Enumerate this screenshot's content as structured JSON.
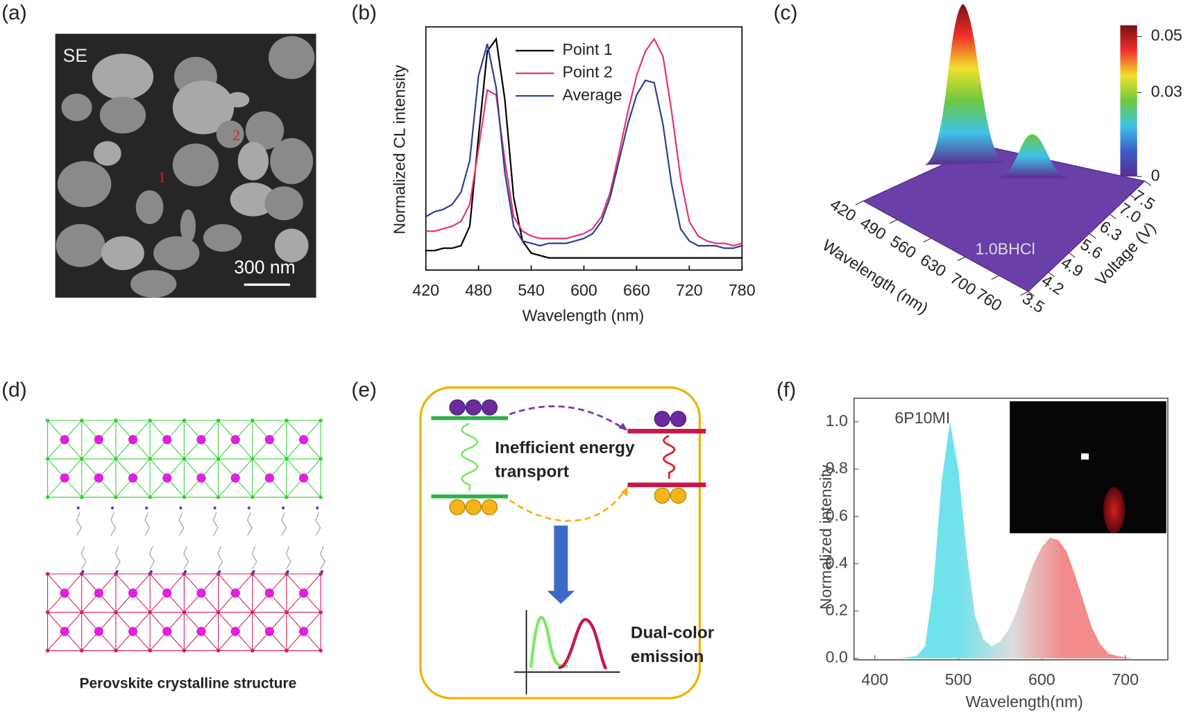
{
  "panel_labels": [
    "(a)",
    "(b)",
    "(c)",
    "(d)",
    "(e)",
    "(f)"
  ],
  "sem_image": {
    "label": "SE",
    "points": [
      "1",
      "2"
    ],
    "scale_bar": "300 nm"
  },
  "chart_data": [
    {
      "type": "line",
      "xlabel": "Wavelength (nm)",
      "ylabel": "Normalized CL intensity",
      "x": [
        420,
        430,
        440,
        450,
        460,
        470,
        480,
        490,
        500,
        510,
        520,
        530,
        540,
        550,
        560,
        570,
        580,
        590,
        600,
        610,
        620,
        630,
        640,
        650,
        660,
        670,
        680,
        690,
        700,
        710,
        720,
        730,
        740,
        750,
        760,
        770,
        780
      ],
      "xlim": [
        420,
        780
      ],
      "xticks": [
        420,
        480,
        540,
        600,
        660,
        720,
        780
      ],
      "ylim": [
        0,
        1
      ],
      "legend": "upper center",
      "series": [
        {
          "name": "Point 1",
          "color": "#000000",
          "values": [
            0.08,
            0.08,
            0.09,
            0.09,
            0.1,
            0.18,
            0.55,
            0.9,
            0.95,
            0.7,
            0.3,
            0.12,
            0.07,
            0.06,
            0.05,
            0.05,
            0.05,
            0.05,
            0.05,
            0.05,
            0.05,
            0.05,
            0.05,
            0.05,
            0.05,
            0.05,
            0.05,
            0.05,
            0.05,
            0.05,
            0.05,
            0.05,
            0.05,
            0.05,
            0.05,
            0.05,
            0.05
          ]
        },
        {
          "name": "Point 2",
          "color": "#e8317a",
          "values": [
            0.16,
            0.16,
            0.17,
            0.18,
            0.2,
            0.27,
            0.5,
            0.74,
            0.72,
            0.45,
            0.22,
            0.16,
            0.14,
            0.13,
            0.13,
            0.13,
            0.13,
            0.14,
            0.15,
            0.17,
            0.22,
            0.32,
            0.48,
            0.65,
            0.8,
            0.9,
            0.95,
            0.88,
            0.65,
            0.38,
            0.2,
            0.14,
            0.12,
            0.11,
            0.11,
            0.1,
            0.11
          ]
        },
        {
          "name": "Average",
          "color": "#2b3f8f",
          "values": [
            0.22,
            0.24,
            0.25,
            0.27,
            0.32,
            0.45,
            0.8,
            0.93,
            0.75,
            0.4,
            0.18,
            0.12,
            0.11,
            0.1,
            0.11,
            0.11,
            0.11,
            0.12,
            0.13,
            0.15,
            0.2,
            0.3,
            0.45,
            0.6,
            0.72,
            0.78,
            0.77,
            0.6,
            0.35,
            0.17,
            0.12,
            0.1,
            0.1,
            0.1,
            0.09,
            0.09,
            0.1
          ]
        }
      ]
    },
    {
      "type": "surface",
      "xlabel": "Wavelength (nm)",
      "ylabel": "Voltage (V)",
      "annotation": "1.0BHCl",
      "xlim": [
        420,
        760
      ],
      "xticks": [
        420,
        490,
        560,
        630,
        700,
        760
      ],
      "ylim": [
        3.5,
        7.5
      ],
      "yticks": [
        3.5,
        4.2,
        4.9,
        5.6,
        6.3,
        {
          "value": 7,
          "label": "7.0"
        },
        7.5
      ],
      "clim": [
        0,
        0.054
      ],
      "cticks": [
        0.05,
        0.03,
        0
      ],
      "colormap": [
        "#5b2c8f",
        "#3a5cc8",
        "#3fc2e8",
        "#6cc843",
        "#f2e12a",
        "#f0302a",
        "#7a0f12"
      ]
    },
    {
      "type": "area",
      "xlabel": "Wavelength(nm)",
      "ylabel": "Normalized intensity",
      "annotation": "6P10MI",
      "x": [
        400,
        410,
        420,
        430,
        440,
        450,
        460,
        470,
        480,
        490,
        500,
        510,
        520,
        530,
        540,
        550,
        560,
        570,
        580,
        590,
        600,
        610,
        620,
        630,
        640,
        650,
        660,
        670,
        680,
        690,
        700,
        710,
        720,
        730
      ],
      "values": [
        0,
        0,
        0,
        0,
        0.005,
        0.01,
        0.05,
        0.3,
        0.75,
        1,
        0.8,
        0.45,
        0.18,
        0.08,
        0.05,
        0.07,
        0.12,
        0.2,
        0.3,
        0.4,
        0.47,
        0.51,
        0.5,
        0.45,
        0.35,
        0.24,
        0.13,
        0.06,
        0.02,
        0.01,
        0.005,
        0,
        0,
        0
      ],
      "xlim": [
        375,
        751
      ],
      "xticks": [
        400,
        500,
        600,
        700
      ],
      "ylim": [
        0,
        1.1
      ],
      "yticks": [
        {
          "value": 0,
          "label": "0.0"
        },
        0.2,
        0.4,
        0.6,
        0.8,
        {
          "value": 1,
          "label": "1.0"
        }
      ],
      "colors": [
        "#6fe3ec",
        "#dcdcdc",
        "#f28c8c"
      ]
    }
  ],
  "structure": {
    "caption": "Perovskite  crystalline structure"
  },
  "mechanism": {
    "text": [
      "Inefficient energy",
      "transport"
    ],
    "result": [
      "Dual-color",
      "emission"
    ]
  }
}
